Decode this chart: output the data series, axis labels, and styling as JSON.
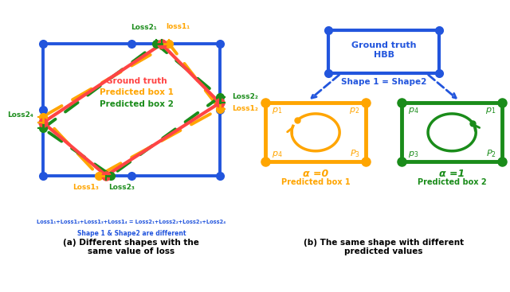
{
  "fig_width": 6.4,
  "fig_height": 3.67,
  "bg_color": "#ffffff",
  "blue": "#2255DD",
  "orange": "#FFA500",
  "green": "#1A8C1A",
  "red": "#FF4444",
  "panel_a_caption": "(a) Different shapes with the\nsame value of loss",
  "panel_b_caption": "(b) The same shape with different\npredicted values",
  "equation_text": "Loss1₁+Loss1₂+Loss1₃+Loss1₄ = Loss2₁+Loss2₂+Loss2₃+Loss2₄",
  "shape_text": "Shape 1 & Shape2 are different",
  "legend_gt": "Ground truth",
  "legend_box1": "Predicted box 1",
  "legend_box2": "Predicted box 2",
  "shape1_eq": "Shape 1 = Shape2",
  "gt_hbb": "Ground truth\nHBB",
  "alpha0": "α =0",
  "alpha1": "α =1",
  "pred_box1": "Predicted box 1",
  "pred_box2": "Predicted box 2"
}
